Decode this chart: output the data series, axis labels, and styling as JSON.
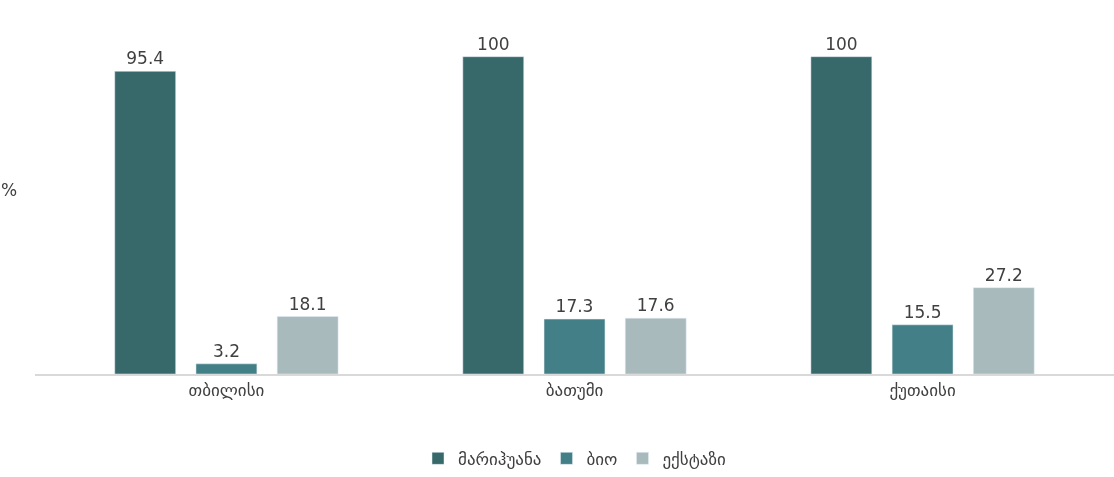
{
  "chart_data": {
    "type": "bar",
    "ylabel": "%",
    "categories": [
      "თბილისი",
      "ბათუმი",
      "ქუთაისი"
    ],
    "series": [
      {
        "name": "მარიჰუანა",
        "color": "#37696b",
        "values": [
          95.4,
          100,
          100
        ]
      },
      {
        "name": "ბიო",
        "color": "#437f86",
        "values": [
          3.2,
          17.3,
          15.5
        ]
      },
      {
        "name": "ექსტაზი",
        "color": "#a8babc",
        "values": [
          18.1,
          17.6,
          27.2
        ]
      }
    ],
    "data_labels": true,
    "legend": "bottom"
  }
}
